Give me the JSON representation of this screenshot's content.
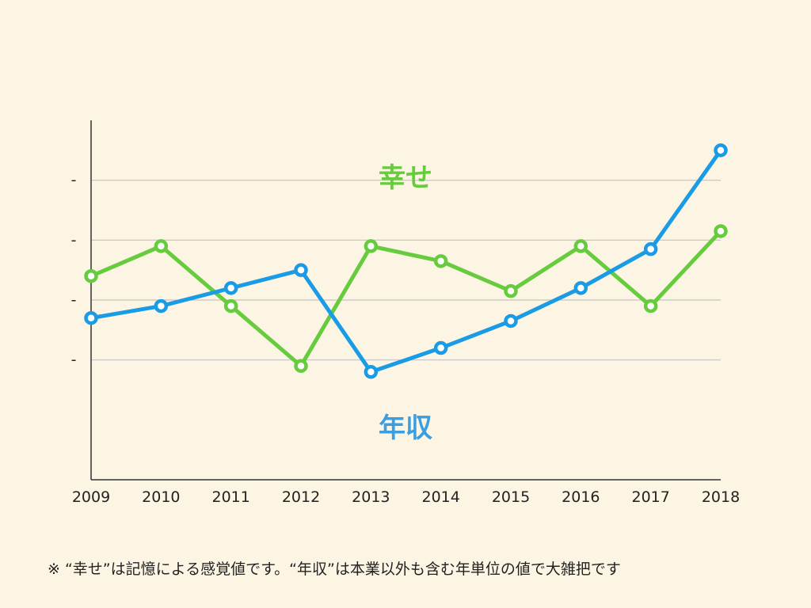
{
  "chart_data": {
    "type": "line",
    "x": [
      "2009",
      "2010",
      "2011",
      "2012",
      "2013",
      "2014",
      "2015",
      "2016",
      "2017",
      "2018"
    ],
    "series": [
      {
        "name": "幸せ",
        "color": "#66cc3d",
        "values": [
          3.4,
          3.9,
          2.9,
          1.9,
          3.9,
          3.65,
          3.15,
          3.9,
          2.9,
          4.15
        ]
      },
      {
        "name": "年収",
        "color": "#1a9be6",
        "values": [
          2.7,
          2.9,
          3.2,
          3.5,
          1.8,
          2.2,
          2.65,
          3.2,
          3.85,
          5.5
        ]
      }
    ],
    "ylim": [
      0,
      6
    ],
    "yticks": [
      2,
      3,
      4,
      5
    ],
    "y_tick_labels": [
      "-",
      "-",
      "-",
      "-"
    ],
    "grid": true
  },
  "footnote": "※ “幸せ”は記憶による感覚値です。“年収”は本業以外も含む年単位の値で大雑把です"
}
